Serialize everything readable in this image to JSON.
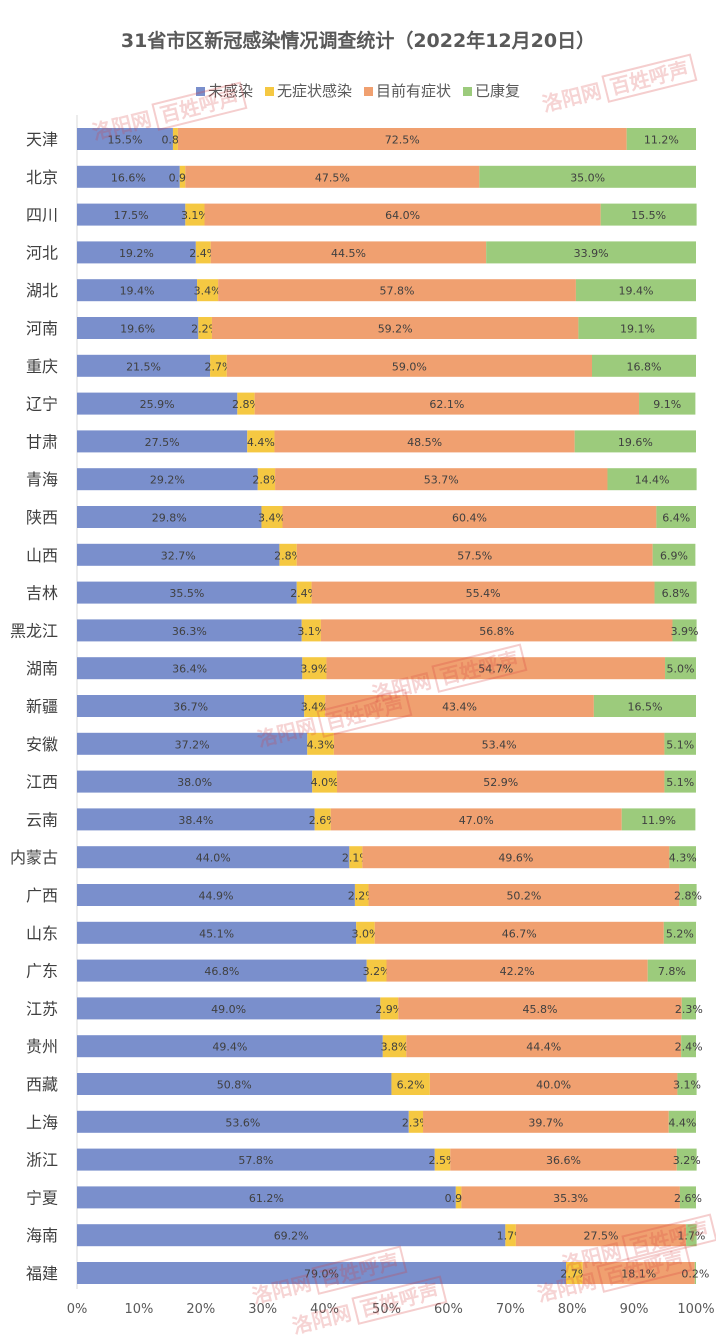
{
  "chart_data": {
    "type": "bar",
    "stacked": "percent",
    "orientation": "horizontal",
    "title": "31省市区新冠感染情况调查统计（2022年12月20日）",
    "legend_position": "top",
    "xlim": [
      0,
      100
    ],
    "x_ticks": [
      "0%",
      "10%",
      "20%",
      "30%",
      "40%",
      "50%",
      "60%",
      "70%",
      "80%",
      "90%",
      "100%"
    ],
    "categories": [
      "天津",
      "北京",
      "四川",
      "河北",
      "湖北",
      "河南",
      "重庆",
      "辽宁",
      "甘肃",
      "青海",
      "陕西",
      "山西",
      "吉林",
      "黑龙江",
      "湖南",
      "新疆",
      "安徽",
      "江西",
      "云南",
      "内蒙古",
      "广西",
      "山东",
      "广东",
      "江苏",
      "贵州",
      "西藏",
      "上海",
      "浙江",
      "宁夏",
      "海南",
      "福建"
    ],
    "series": [
      {
        "name": "未感染",
        "color": "#7a8fcc",
        "values": [
          15.5,
          16.6,
          17.5,
          19.2,
          19.4,
          19.6,
          21.5,
          25.9,
          27.5,
          29.2,
          29.8,
          32.7,
          35.5,
          36.3,
          36.4,
          36.7,
          37.2,
          38.0,
          38.4,
          44.0,
          44.9,
          45.1,
          46.8,
          49.0,
          49.4,
          50.8,
          53.6,
          57.8,
          61.2,
          69.2,
          79.0
        ]
      },
      {
        "name": "无症状感染",
        "color": "#f5c842",
        "values": [
          0.8,
          0.9,
          3.1,
          2.4,
          3.4,
          2.2,
          2.7,
          2.8,
          4.4,
          2.8,
          3.4,
          2.8,
          2.4,
          3.1,
          3.9,
          3.4,
          4.3,
          4.0,
          2.6,
          2.1,
          2.2,
          3.0,
          3.2,
          2.9,
          3.8,
          6.2,
          2.3,
          2.5,
          0.9,
          1.7,
          2.7
        ]
      },
      {
        "name": "目前有症状",
        "color": "#f0a070",
        "values": [
          72.5,
          47.5,
          64.0,
          44.5,
          57.8,
          59.2,
          59.0,
          62.1,
          48.5,
          53.7,
          60.4,
          57.5,
          55.4,
          56.8,
          54.7,
          43.4,
          53.4,
          52.9,
          47.0,
          49.6,
          50.2,
          46.7,
          42.2,
          45.8,
          44.4,
          40.0,
          39.7,
          36.6,
          35.3,
          27.5,
          18.1
        ]
      },
      {
        "name": "已康复",
        "color": "#9ccb7c",
        "values": [
          11.2,
          35.0,
          15.5,
          33.9,
          19.4,
          19.1,
          16.8,
          9.1,
          19.6,
          14.4,
          6.4,
          6.9,
          6.8,
          3.9,
          5.0,
          16.5,
          5.1,
          5.1,
          11.9,
          4.3,
          2.8,
          5.2,
          7.8,
          2.3,
          2.4,
          3.1,
          4.4,
          3.2,
          2.6,
          1.7,
          0.2
        ]
      }
    ]
  },
  "watermarks": [
    "洛阳网",
    "百姓呼声"
  ]
}
